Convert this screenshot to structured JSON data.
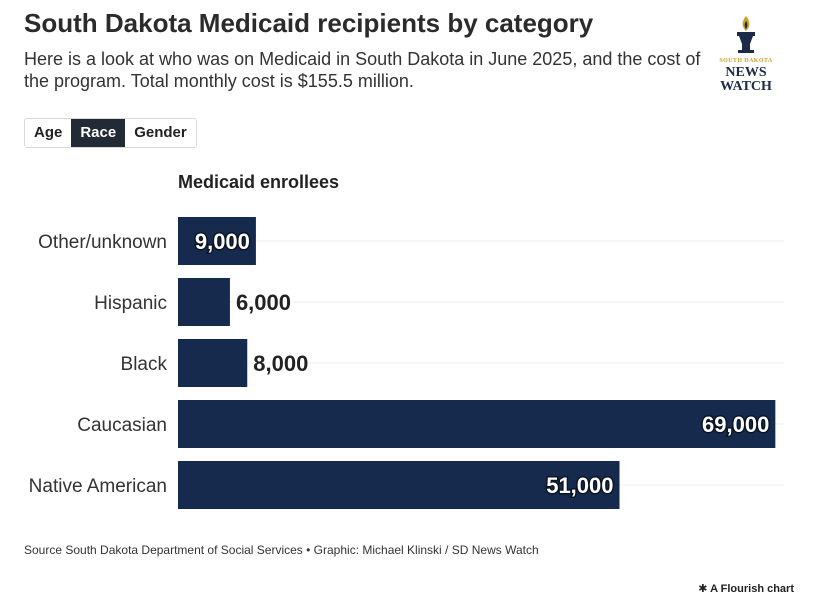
{
  "header": {
    "title": "South Dakota Medicaid recipients by category",
    "subtitle": "Here is a look at who was on Medicaid in South Dakota in June 2025, and the cost of the program. Total monthly cost is $155.5 million."
  },
  "logo": {
    "line1": "SOUTH DAKOTA",
    "line2": "NEWS",
    "line3": "WATCH",
    "colors": {
      "navy": "#1b2a47",
      "gold": "#c9a227"
    }
  },
  "tabs": [
    {
      "label": "Age",
      "active": false
    },
    {
      "label": "Race",
      "active": true
    },
    {
      "label": "Gender",
      "active": false
    }
  ],
  "chart_data": {
    "type": "bar",
    "orientation": "horizontal",
    "title": "Medicaid enrollees",
    "categories": [
      "Other/unknown",
      "Hispanic",
      "Black",
      "Caucasian",
      "Native American"
    ],
    "values": [
      9000,
      6000,
      8000,
      69000,
      51000
    ],
    "value_labels": [
      "9,000",
      "6,000",
      "8,000",
      "69,000",
      "51,000"
    ],
    "xlim": [
      0,
      70000
    ],
    "grid": true,
    "bar_color": "#152a4c"
  },
  "footer": {
    "source": "Source South Dakota Department of Social Services • Graphic: Michael Klinski / SD News Watch",
    "credit": "A Flourish chart"
  }
}
